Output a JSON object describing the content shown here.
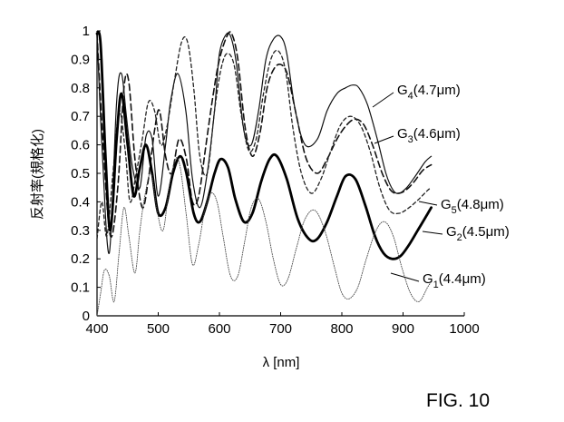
{
  "chart_data": {
    "type": "line",
    "xlabel": "λ [nm]",
    "ylabel": "反射率(規格化)",
    "xlim": [
      400,
      1000
    ],
    "ylim": [
      0,
      1
    ],
    "xticks": [
      "400",
      "500",
      "600",
      "700",
      "800",
      "900",
      "1000"
    ],
    "yticks": [
      "0",
      "0.1",
      "0.2",
      "0.3",
      "0.4",
      "0.5",
      "0.6",
      "0.7",
      "0.8",
      "0.9",
      "1"
    ],
    "grid": false,
    "figure_label": "FIG. 10",
    "series": [
      {
        "name": "G4(4.7μm)",
        "main": "G",
        "sub": "4",
        "suffix": "(4.7μm)",
        "style": "solid-thin",
        "x": [
          400,
          408,
          420,
          432,
          440,
          448,
          458,
          470,
          480,
          490,
          500,
          512,
          520,
          532,
          545,
          556,
          568,
          580,
          592,
          600,
          612,
          620,
          628,
          640,
          652,
          664,
          676,
          688,
          700,
          710,
          724,
          740,
          760,
          776,
          792,
          806,
          818,
          828,
          842,
          858,
          872,
          884,
          894,
          906,
          920,
          936,
          946
        ],
        "y": [
          0.99,
          0.6,
          0.22,
          0.75,
          0.85,
          0.7,
          0.52,
          0.45,
          0.63,
          0.62,
          0.42,
          0.6,
          0.75,
          0.85,
          0.72,
          0.48,
          0.38,
          0.5,
          0.72,
          0.92,
          0.99,
          0.97,
          0.88,
          0.65,
          0.6,
          0.72,
          0.9,
          0.97,
          0.98,
          0.92,
          0.72,
          0.6,
          0.62,
          0.72,
          0.78,
          0.8,
          0.81,
          0.8,
          0.74,
          0.62,
          0.5,
          0.44,
          0.43,
          0.45,
          0.49,
          0.54,
          0.56
        ]
      },
      {
        "name": "G3(4.6μm)",
        "main": "G",
        "sub": "3",
        "suffix": "(4.6μm)",
        "style": "dash-long",
        "x": [
          400,
          410,
          422,
          434,
          444,
          452,
          462,
          474,
          484,
          494,
          502,
          512,
          522,
          534,
          546,
          556,
          566,
          578,
          590,
          600,
          612,
          620,
          630,
          642,
          654,
          666,
          678,
          690,
          702,
          712,
          726,
          742,
          760,
          776,
          792,
          808,
          822,
          836,
          850,
          866,
          880,
          892,
          904,
          918,
          932,
          946
        ],
        "y": [
          0.99,
          0.6,
          0.28,
          0.45,
          0.8,
          0.82,
          0.55,
          0.38,
          0.48,
          0.65,
          0.72,
          0.56,
          0.5,
          0.62,
          0.55,
          0.4,
          0.42,
          0.6,
          0.78,
          0.9,
          0.98,
          0.99,
          0.9,
          0.66,
          0.56,
          0.64,
          0.8,
          0.87,
          0.88,
          0.84,
          0.7,
          0.55,
          0.5,
          0.55,
          0.62,
          0.67,
          0.69,
          0.67,
          0.6,
          0.5,
          0.44,
          0.43,
          0.44,
          0.47,
          0.51,
          0.53
        ]
      },
      {
        "name": "G5(4.8μm)",
        "main": "G",
        "sub": "5",
        "suffix": "(4.8μm)",
        "style": "dash-short",
        "x": [
          400,
          408,
          416,
          426,
          436,
          446,
          454,
          464,
          474,
          484,
          494,
          504,
          514,
          526,
          538,
          548,
          558,
          568,
          580,
          592,
          602,
          612,
          624,
          636,
          648,
          660,
          672,
          684,
          696,
          708,
          720,
          734,
          750,
          766,
          782,
          798,
          814,
          830,
          846,
          862,
          878,
          894,
          910,
          926,
          940,
          946
        ],
        "y": [
          0.27,
          0.4,
          0.28,
          0.5,
          0.72,
          0.58,
          0.4,
          0.5,
          0.62,
          0.75,
          0.72,
          0.6,
          0.66,
          0.82,
          0.96,
          0.96,
          0.8,
          0.56,
          0.5,
          0.72,
          0.86,
          0.92,
          0.88,
          0.7,
          0.58,
          0.62,
          0.78,
          0.9,
          0.93,
          0.86,
          0.66,
          0.5,
          0.43,
          0.48,
          0.58,
          0.67,
          0.7,
          0.67,
          0.58,
          0.45,
          0.37,
          0.36,
          0.38,
          0.41,
          0.44,
          0.45
        ]
      },
      {
        "name": "G2(4.5μm)",
        "main": "G",
        "sub": "2",
        "suffix": "(4.5μm)",
        "style": "solid-thick",
        "x": [
          400,
          406,
          414,
          422,
          432,
          440,
          450,
          460,
          470,
          480,
          490,
          500,
          512,
          524,
          536,
          546,
          558,
          568,
          580,
          592,
          602,
          614,
          626,
          640,
          654,
          668,
          682,
          694,
          710,
          728,
          746,
          760,
          776,
          792,
          806,
          822,
          838,
          854,
          868,
          882,
          896,
          910,
          924,
          938,
          946
        ],
        "y": [
          0.99,
          0.95,
          0.55,
          0.3,
          0.62,
          0.78,
          0.6,
          0.42,
          0.52,
          0.6,
          0.5,
          0.36,
          0.38,
          0.5,
          0.56,
          0.5,
          0.36,
          0.33,
          0.4,
          0.5,
          0.55,
          0.52,
          0.41,
          0.33,
          0.36,
          0.47,
          0.55,
          0.56,
          0.48,
          0.34,
          0.27,
          0.27,
          0.33,
          0.42,
          0.49,
          0.48,
          0.39,
          0.28,
          0.22,
          0.2,
          0.21,
          0.25,
          0.3,
          0.35,
          0.38
        ]
      },
      {
        "name": "G1(4.4μm)",
        "main": "G",
        "sub": "1",
        "suffix": "(4.4μm)",
        "style": "dotted",
        "x": [
          400,
          406,
          412,
          420,
          428,
          436,
          444,
          452,
          462,
          470,
          478,
          488,
          498,
          508,
          518,
          528,
          536,
          546,
          556,
          566,
          576,
          586,
          596,
          606,
          618,
          630,
          642,
          652,
          664,
          676,
          688,
          700,
          712,
          726,
          740,
          756,
          772,
          788,
          800,
          812,
          826,
          840,
          856,
          870,
          884,
          898,
          912,
          926,
          940,
          946
        ],
        "y": [
          0.0,
          0.08,
          0.16,
          0.14,
          0.05,
          0.22,
          0.38,
          0.28,
          0.15,
          0.3,
          0.42,
          0.5,
          0.37,
          0.3,
          0.45,
          0.55,
          0.52,
          0.35,
          0.18,
          0.25,
          0.37,
          0.43,
          0.4,
          0.28,
          0.14,
          0.14,
          0.27,
          0.38,
          0.41,
          0.33,
          0.2,
          0.11,
          0.13,
          0.24,
          0.34,
          0.37,
          0.3,
          0.17,
          0.08,
          0.06,
          0.1,
          0.2,
          0.3,
          0.33,
          0.28,
          0.17,
          0.08,
          0.05,
          0.1,
          0.12
        ]
      }
    ]
  }
}
